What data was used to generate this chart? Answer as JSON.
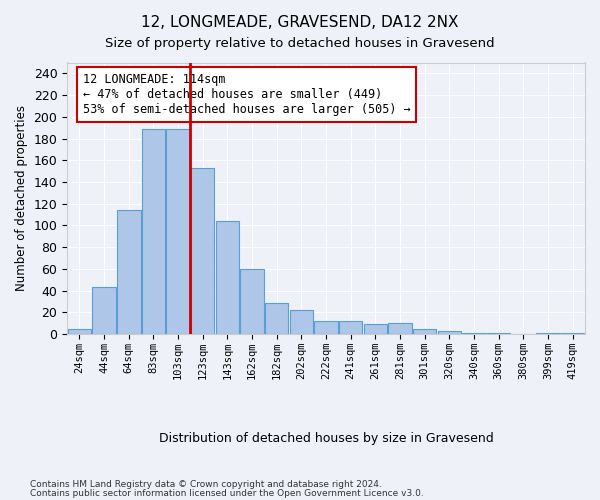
{
  "title1": "12, LONGMEADE, GRAVESEND, DA12 2NX",
  "title2": "Size of property relative to detached houses in Gravesend",
  "xlabel": "Distribution of detached houses by size in Gravesend",
  "ylabel": "Number of detached properties",
  "categories": [
    "24sqm",
    "44sqm",
    "64sqm",
    "83sqm",
    "103sqm",
    "123sqm",
    "143sqm",
    "162sqm",
    "182sqm",
    "202sqm",
    "222sqm",
    "241sqm",
    "261sqm",
    "281sqm",
    "301sqm",
    "320sqm",
    "340sqm",
    "360sqm",
    "380sqm",
    "399sqm",
    "419sqm"
  ],
  "values": [
    5,
    43,
    114,
    189,
    189,
    153,
    104,
    60,
    29,
    22,
    12,
    12,
    9,
    10,
    5,
    3,
    1,
    1,
    0,
    1,
    1
  ],
  "bar_color": "#aec6e8",
  "bar_edge_color": "#5a9fd4",
  "property_line_x": 4.5,
  "annotation_text": "12 LONGMEADE: 114sqm\n← 47% of detached houses are smaller (449)\n53% of semi-detached houses are larger (505) →",
  "annotation_box_color": "#ffffff",
  "annotation_box_edge": "#cc0000",
  "vline_color": "#cc0000",
  "footer1": "Contains HM Land Registry data © Crown copyright and database right 2024.",
  "footer2": "Contains public sector information licensed under the Open Government Licence v3.0.",
  "bg_color": "#eef2f8",
  "grid_color": "#ffffff",
  "ylim": [
    0,
    250
  ],
  "yticks": [
    0,
    20,
    40,
    60,
    80,
    100,
    120,
    140,
    160,
    180,
    200,
    220,
    240
  ]
}
